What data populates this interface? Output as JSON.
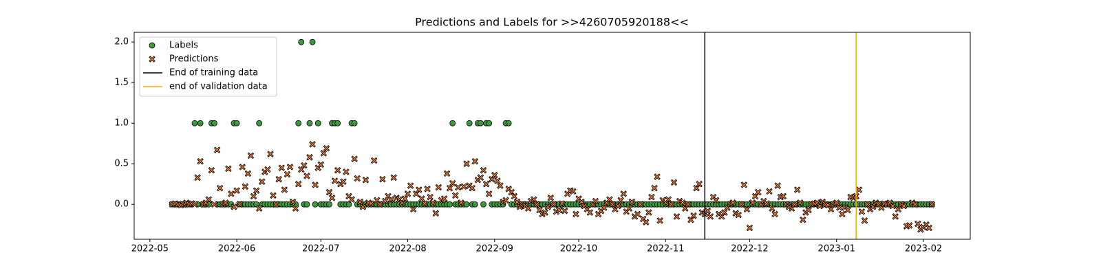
{
  "chart_data": {
    "type": "scatter",
    "title": "Predictions and Labels for >>4260705920188<<",
    "x": [
      19121,
      19122,
      19123,
      19124,
      19125,
      19126,
      19127,
      19128,
      19129,
      19130,
      19131,
      19132,
      19133,
      19134,
      19135,
      19136,
      19137,
      19138,
      19139,
      19140,
      19141,
      19142,
      19143,
      19144,
      19145,
      19146,
      19147,
      19148,
      19149,
      19150,
      19151,
      19152,
      19153,
      19154,
      19155,
      19156,
      19157,
      19158,
      19159,
      19160,
      19161,
      19162,
      19163,
      19164,
      19165,
      19166,
      19167,
      19168,
      19169,
      19170,
      19171,
      19172,
      19173,
      19174,
      19175,
      19176,
      19177,
      19178,
      19179,
      19180,
      19181,
      19182,
      19183,
      19184,
      19185,
      19186,
      19187,
      19188,
      19189,
      19190,
      19191,
      19192,
      19193,
      19194,
      19195,
      19196,
      19197,
      19198,
      19199,
      19200,
      19201,
      19202,
      19203,
      19204,
      19205,
      19206,
      19207,
      19208,
      19209,
      19210,
      19211,
      19212,
      19213,
      19214,
      19215,
      19216,
      19217,
      19218,
      19219,
      19220,
      19221,
      19222,
      19223,
      19224,
      19225,
      19226,
      19227,
      19228,
      19229,
      19230,
      19231,
      19232,
      19233,
      19234,
      19235,
      19236,
      19237,
      19238,
      19239,
      19240,
      19241,
      19242,
      19243,
      19244,
      19245,
      19246,
      19247,
      19248,
      19249,
      19250,
      19251,
      19252,
      19253,
      19254,
      19255,
      19256,
      19257,
      19258,
      19259,
      19260,
      19261,
      19262,
      19263,
      19264,
      19265,
      19266,
      19267,
      19268,
      19269,
      19270,
      19271,
      19272,
      19273,
      19274,
      19275,
      19276,
      19277,
      19278,
      19279,
      19280,
      19281,
      19282,
      19283,
      19284,
      19285,
      19286,
      19287,
      19288,
      19289,
      19290,
      19291,
      19292,
      19293,
      19294,
      19295,
      19296,
      19297,
      19298,
      19299,
      19300,
      19301,
      19302,
      19303,
      19304,
      19305,
      19306,
      19307,
      19308,
      19309,
      19310,
      19311,
      19312,
      19313,
      19314,
      19315,
      19316,
      19317,
      19318,
      19319,
      19320,
      19321,
      19322,
      19323,
      19324,
      19325,
      19326,
      19327,
      19328,
      19329,
      19330,
      19331,
      19332,
      19333,
      19334,
      19335,
      19336,
      19337,
      19338,
      19339,
      19340,
      19341,
      19342,
      19343,
      19344,
      19345,
      19346,
      19347,
      19348,
      19349,
      19350,
      19351,
      19352,
      19353,
      19354,
      19355,
      19356,
      19357,
      19358,
      19359,
      19360,
      19361,
      19362,
      19363,
      19364,
      19365,
      19366,
      19367,
      19368,
      19369,
      19370,
      19371,
      19372,
      19373,
      19374,
      19375,
      19376,
      19377,
      19378,
      19379,
      19380,
      19381,
      19382,
      19383,
      19384,
      19385,
      19386,
      19387,
      19388,
      19389,
      19390,
      19391,
      19392
    ],
    "series": [
      {
        "name": "Labels",
        "marker": "circle",
        "color": "#3d9b3d",
        "values": [
          0,
          0,
          0,
          0,
          0,
          0,
          0,
          0,
          1,
          0,
          1,
          0,
          0,
          0,
          1,
          1,
          0,
          0,
          0,
          0,
          0,
          0,
          1,
          1,
          0,
          0,
          0,
          0,
          0,
          0,
          0,
          1,
          0,
          0,
          0,
          0,
          0,
          0,
          0,
          0,
          0,
          0,
          0,
          0,
          0,
          1,
          2,
          0,
          0,
          1,
          2,
          0,
          1,
          0,
          0,
          0,
          0,
          1,
          1,
          1,
          0,
          0,
          0,
          0,
          1,
          1,
          0,
          0,
          0,
          0,
          0,
          0,
          0,
          0,
          0,
          0,
          0,
          0,
          0,
          0,
          0,
          0,
          0,
          0,
          0,
          0,
          0,
          0,
          0,
          0,
          0,
          0,
          0,
          0,
          0,
          0,
          0,
          0,
          0,
          0,
          1,
          0,
          0,
          0,
          0,
          0,
          1,
          0,
          0,
          1,
          1,
          0,
          1,
          1,
          0,
          0,
          0,
          0,
          0,
          1,
          1,
          0,
          0,
          0,
          0,
          0,
          0,
          0,
          0,
          0,
          0,
          0,
          0,
          0,
          0,
          0,
          0,
          0,
          0,
          0,
          0,
          0,
          0,
          0,
          0,
          0,
          0,
          0,
          0,
          0,
          0,
          0,
          0,
          0,
          0,
          0,
          0,
          0,
          0,
          0,
          0,
          0,
          0,
          0,
          0,
          0,
          0,
          0,
          0,
          0,
          0,
          0,
          0,
          0,
          0,
          0,
          0,
          0,
          0,
          0,
          0,
          0,
          0,
          0,
          0,
          0,
          0,
          0,
          0,
          0,
          0,
          0,
          0,
          0,
          0,
          0,
          0,
          0,
          0,
          0,
          0,
          0,
          0,
          0,
          0,
          0,
          0,
          0,
          0,
          0,
          0,
          0,
          0,
          0,
          0,
          0,
          0,
          0,
          0,
          0,
          0,
          0,
          0,
          0,
          0,
          0,
          0,
          0,
          0,
          0,
          0,
          0,
          0,
          0,
          0,
          0,
          0,
          0,
          0,
          0,
          0,
          0,
          0,
          0,
          0,
          0,
          0,
          0,
          0,
          0,
          0,
          0,
          0,
          0,
          0,
          0,
          0,
          0,
          0,
          0,
          0,
          0,
          0,
          0,
          0,
          0,
          0,
          0,
          0,
          0,
          0,
          0
        ]
      },
      {
        "name": "Predictions",
        "marker": "x",
        "color": "#f07a2e",
        "values": [
          0.0,
          0.01,
          0.0,
          -0.01,
          0.0,
          0.02,
          0.0,
          0.01,
          0.0,
          0.33,
          0.53,
          0.0,
          0.02,
          0.06,
          0.42,
          0.0,
          0.67,
          0.2,
          0.0,
          0.02,
          0.44,
          0.13,
          -0.03,
          0.17,
          0.0,
          0.46,
          0.22,
          0.38,
          0.6,
          0.1,
          0.17,
          -0.05,
          0.28,
          0.4,
          0.43,
          0.62,
          0.11,
          0.0,
          0.31,
          0.45,
          0.18,
          0.37,
          0.46,
          0.03,
          -0.05,
          0.25,
          0.43,
          0.48,
          0.35,
          0.58,
          0.74,
          0.24,
          0.45,
          0.49,
          0.63,
          0.69,
          0.15,
          0.08,
          0.29,
          0.42,
          0.25,
          0.28,
          0.4,
          0.1,
          0.06,
          0.56,
          0.32,
          0.03,
          -0.03,
          0.3,
          0.02,
          0.01,
          0.54,
          0.05,
          0.0,
          0.31,
          0.04,
          0.1,
          0.06,
          0.33,
          0.08,
          0.06,
          0.02,
          0.07,
          0.13,
          0.23,
          -0.06,
          0.13,
          0.18,
          0.07,
          0.01,
          0.19,
          0.09,
          0.02,
          -0.11,
          0.21,
          0.05,
          0.07,
          0.38,
          0.2,
          0.26,
          0.11,
          0.21,
          0.02,
          0.22,
          0.5,
          0.23,
          0.2,
          0.53,
          0.3,
          0.33,
          0.42,
          0.25,
          0.13,
          0.31,
          0.36,
          0.29,
          0.23,
          0.03,
          0.05,
          0.19,
          0.15,
          0.1,
          0.03,
          -0.03,
          0.0,
          -0.02,
          -0.05,
          0.04,
          0.06,
          0.0,
          -0.07,
          -0.12,
          -0.1,
          -0.03,
          0.08,
          0.0,
          -0.09,
          -0.07,
          0.01,
          -0.08,
          0.13,
          0.17,
          0.16,
          -0.12,
          0.07,
          0.03,
          -0.02,
          -0.06,
          -0.1,
          0.0,
          0.04,
          -0.12,
          -0.08,
          -0.04,
          0.02,
          0.06,
          0.0,
          -0.06,
          -0.02,
          0.05,
          0.13,
          -0.09,
          -0.05,
          0.03,
          -0.15,
          -0.12,
          0.0,
          -0.18,
          -0.22,
          -0.1,
          0.09,
          0.2,
          0.34,
          -0.2,
          0.05,
          0.02,
          0.06,
          0.0,
          0.27,
          -0.15,
          0.04,
          0.02,
          -0.05,
          0.0,
          -0.19,
          -0.14,
          0.2,
          0.25,
          -0.1,
          -0.12,
          -0.08,
          -0.15,
          0.09,
          0.05,
          -0.12,
          -0.15,
          -0.1,
          -0.04,
          0.0,
          0.02,
          -0.11,
          -0.13,
          0.0,
          0.24,
          -0.06,
          -0.29,
          0.02,
          0.1,
          0.15,
          0.0,
          0.04,
          0.01,
          0.16,
          -0.05,
          -0.12,
          0.23,
          0.09,
          0.1,
          0.0,
          -0.03,
          -0.05,
          0.0,
          0.18,
          0.02,
          -0.19,
          -0.1,
          -0.07,
          0.0,
          0.01,
          0.02,
          -0.02,
          0.03,
          0.0,
          -0.01,
          -0.06,
          0.0,
          0.02,
          -0.04,
          -0.12,
          -0.04,
          -0.07,
          0.09,
          0.08,
          0.1,
          0.18,
          -0.09,
          -0.2,
          0.0,
          -0.06,
          -0.03,
          0.02,
          0.0,
          -0.04,
          0.01,
          0.0,
          0.02,
          -0.02,
          -0.15,
          -0.06,
          0.0,
          -0.02,
          -0.27,
          -0.26,
          0.02,
          0.0,
          -0.24,
          -0.31,
          -0.28,
          -0.25,
          -0.29,
          0.0
        ]
      }
    ],
    "vlines": [
      {
        "name": "End of training data",
        "x": 19311,
        "color": "#000000"
      },
      {
        "name": "end of validation data",
        "x": 19365,
        "color": "#ffa500"
      }
    ],
    "xlim": [
      19107.4,
      19405.7
    ],
    "xticks": [
      {
        "value": 19113,
        "label": "2022-05"
      },
      {
        "value": 19144,
        "label": "2022-06"
      },
      {
        "value": 19174,
        "label": "2022-07"
      },
      {
        "value": 19205,
        "label": "2022-08"
      },
      {
        "value": 19236,
        "label": "2022-09"
      },
      {
        "value": 19266,
        "label": "2022-10"
      },
      {
        "value": 19297,
        "label": "2022-11"
      },
      {
        "value": 19327,
        "label": "2022-12"
      },
      {
        "value": 19358,
        "label": "2023-01"
      },
      {
        "value": 19389,
        "label": "2023-02"
      }
    ],
    "ylim": [
      -0.43,
      2.12
    ],
    "yticks": [
      {
        "value": 0,
        "label": "0.0"
      },
      {
        "value": 0.5,
        "label": "0.5"
      },
      {
        "value": 1,
        "label": "1.0"
      },
      {
        "value": 1.5,
        "label": "1.5"
      },
      {
        "value": 2,
        "label": "2.0"
      }
    ],
    "grid": false,
    "legend": "upper left"
  }
}
